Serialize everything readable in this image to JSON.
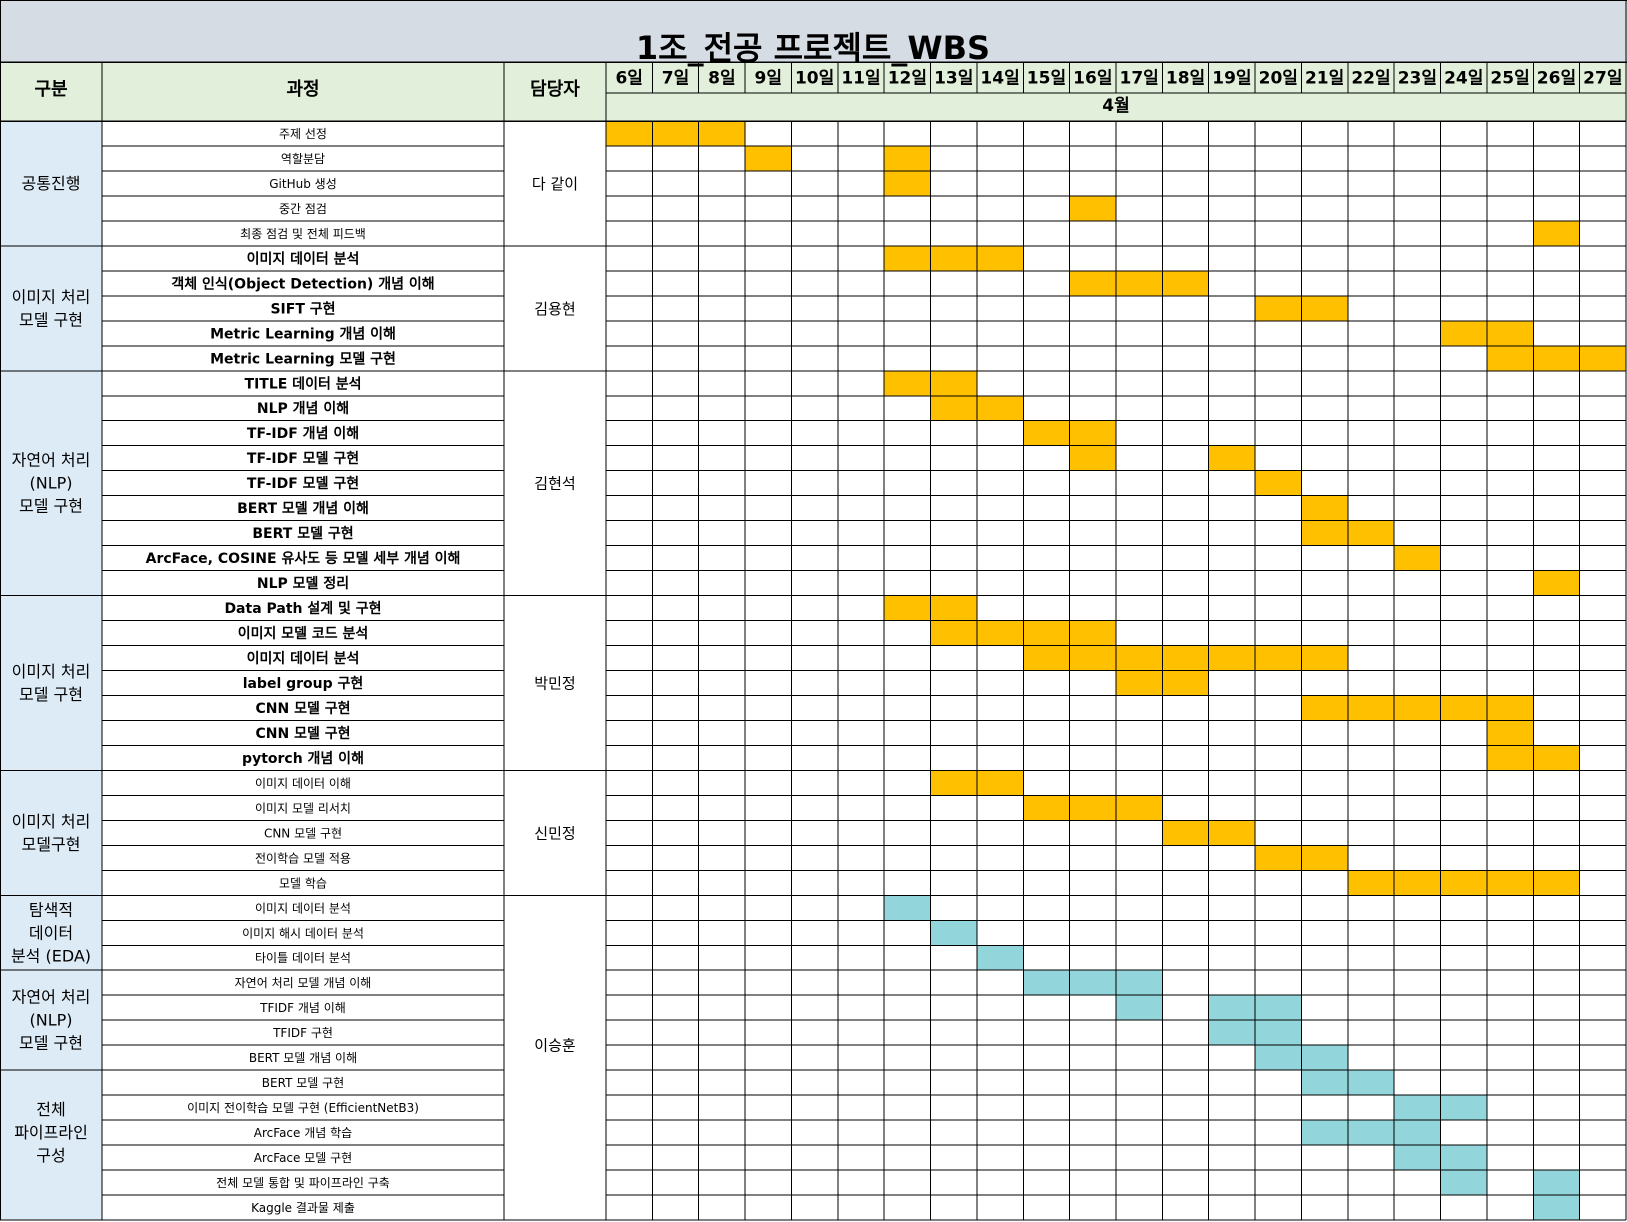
{
  "title": "1조_전공 프로젝트_WBS",
  "headers": {
    "category": "구분",
    "task": "과정",
    "owner": "담당자",
    "month": "4월"
  },
  "days": [
    "6일",
    "7일",
    "8일",
    "9일",
    "10일",
    "11일",
    "12일",
    "13일",
    "14일",
    "15일",
    "16일",
    "17일",
    "18일",
    "19일",
    "20일",
    "21일",
    "22일",
    "23일",
    "24일",
    "25일",
    "26일",
    "27일"
  ],
  "colors": {
    "title_bg": "#d6dce4",
    "header_bg": "#e2efda",
    "category_bg": "#ddebf7",
    "bar_orange": "#ffc000",
    "bar_teal": "#92d6dc",
    "grid": "#000000"
  },
  "categories": [
    {
      "lines": [
        "공통진행"
      ],
      "rows": [
        0,
        4
      ]
    },
    {
      "lines": [
        "이미지 처리",
        "모델 구현"
      ],
      "rows": [
        5,
        9
      ]
    },
    {
      "lines": [
        "자연어 처리",
        "(NLP)",
        "모델 구현"
      ],
      "rows": [
        10,
        18
      ]
    },
    {
      "lines": [
        "이미지 처리",
        "모델 구현"
      ],
      "rows": [
        19,
        25
      ]
    },
    {
      "lines": [
        "이미지 처리",
        "모델구현"
      ],
      "rows": [
        26,
        30
      ]
    },
    {
      "lines": [
        "탐색적",
        "데이터",
        "분석 (EDA)"
      ],
      "rows": [
        31,
        33
      ]
    },
    {
      "lines": [
        "자연어 처리",
        "(NLP)",
        "모델 구현"
      ],
      "rows": [
        34,
        37
      ]
    },
    {
      "lines": [
        "전체",
        "파이프라인",
        "구성"
      ],
      "rows": [
        38,
        42
      ]
    }
  ],
  "owners": [
    {
      "name": "다 같이",
      "rows": [
        0,
        4
      ]
    },
    {
      "name": "김용현",
      "rows": [
        5,
        9
      ]
    },
    {
      "name": "김현석",
      "rows": [
        10,
        18
      ]
    },
    {
      "name": "박민정",
      "rows": [
        19,
        25
      ]
    },
    {
      "name": "신민정",
      "rows": [
        26,
        30
      ]
    },
    {
      "name": "이승훈",
      "rows": [
        31,
        42
      ]
    }
  ],
  "tasks": [
    {
      "name": "주제 선정",
      "bold": false,
      "color": "orange",
      "days": [
        0,
        1,
        2
      ]
    },
    {
      "name": "역할분담",
      "bold": false,
      "color": "orange",
      "days": [
        3,
        6
      ]
    },
    {
      "name": "GitHub 생성",
      "bold": false,
      "color": "orange",
      "days": [
        6
      ]
    },
    {
      "name": "중간 점검",
      "bold": false,
      "color": "orange",
      "days": [
        10
      ]
    },
    {
      "name": "최종 점검 및 전체 피드백",
      "bold": false,
      "color": "orange",
      "days": [
        20
      ]
    },
    {
      "name": "이미지 데이터 분석",
      "bold": true,
      "color": "orange",
      "days": [
        6,
        7,
        8
      ]
    },
    {
      "name": "객체 인식(Object Detection) 개념 이해",
      "bold": true,
      "color": "orange",
      "days": [
        10,
        11,
        12
      ]
    },
    {
      "name": "SIFT 구현",
      "bold": true,
      "color": "orange",
      "days": [
        14,
        15
      ]
    },
    {
      "name": "Metric Learning 개념 이해",
      "bold": true,
      "color": "orange",
      "days": [
        18,
        19
      ]
    },
    {
      "name": "Metric Learning 모델 구현",
      "bold": true,
      "color": "orange",
      "days": [
        19,
        20,
        21
      ]
    },
    {
      "name": "TITLE 데이터 분석",
      "bold": true,
      "color": "orange",
      "days": [
        6,
        7
      ]
    },
    {
      "name": "NLP 개념 이해",
      "bold": true,
      "color": "orange",
      "days": [
        7,
        8
      ]
    },
    {
      "name": "TF-IDF 개념 이해",
      "bold": true,
      "color": "orange",
      "days": [
        9,
        10
      ]
    },
    {
      "name": "TF-IDF 모델 구현",
      "bold": true,
      "color": "orange",
      "days": [
        10,
        13
      ]
    },
    {
      "name": "TF-IDF 모델 구현",
      "bold": true,
      "color": "orange",
      "days": [
        14
      ]
    },
    {
      "name": "BERT 모델 개념 이해",
      "bold": true,
      "color": "orange",
      "days": [
        15
      ]
    },
    {
      "name": "BERT 모델 구현",
      "bold": true,
      "color": "orange",
      "days": [
        15,
        16
      ]
    },
    {
      "name": "ArcFace, COSINE 유사도 등 모델 세부 개념 이해",
      "bold": true,
      "color": "orange",
      "days": [
        17
      ]
    },
    {
      "name": "NLP 모델 정리",
      "bold": true,
      "color": "orange",
      "days": [
        20
      ]
    },
    {
      "name": "Data Path 설계 및 구현",
      "bold": true,
      "color": "orange",
      "days": [
        6,
        7
      ]
    },
    {
      "name": "이미지 모델 코드 분석",
      "bold": true,
      "color": "orange",
      "days": [
        7,
        8,
        9,
        10
      ]
    },
    {
      "name": "이미지 데이터 분석",
      "bold": true,
      "color": "orange",
      "days": [
        9,
        10,
        11,
        12,
        13,
        14,
        15
      ]
    },
    {
      "name": "label group 구현",
      "bold": true,
      "color": "orange",
      "days": [
        11,
        12
      ]
    },
    {
      "name": "CNN 모델 구현",
      "bold": true,
      "color": "orange",
      "days": [
        15,
        16,
        17,
        18,
        19
      ]
    },
    {
      "name": "CNN 모델 구현",
      "bold": true,
      "color": "orange",
      "days": [
        19
      ]
    },
    {
      "name": "pytorch 개념 이해",
      "bold": true,
      "color": "orange",
      "days": [
        19,
        20
      ]
    },
    {
      "name": "이미지 데이터 이해",
      "bold": false,
      "color": "orange",
      "days": [
        7,
        8
      ]
    },
    {
      "name": "이미지 모델 리서치",
      "bold": false,
      "color": "orange",
      "days": [
        9,
        10,
        11
      ]
    },
    {
      "name": "CNN 모델 구현",
      "bold": false,
      "color": "orange",
      "days": [
        12,
        13
      ]
    },
    {
      "name": "전이학습 모델 적용",
      "bold": false,
      "color": "orange",
      "days": [
        14,
        15
      ]
    },
    {
      "name": "모델 학습",
      "bold": false,
      "color": "orange",
      "days": [
        16,
        17,
        18,
        19,
        20
      ]
    },
    {
      "name": "이미지 데이터 분석",
      "bold": false,
      "color": "teal",
      "days": [
        6
      ]
    },
    {
      "name": "이미지 해시 데이터 분석",
      "bold": false,
      "color": "teal",
      "days": [
        7
      ]
    },
    {
      "name": "타이틀 데이터 분석",
      "bold": false,
      "color": "teal",
      "days": [
        8
      ]
    },
    {
      "name": "자연어 처리 모델 개념 이해",
      "bold": false,
      "color": "teal",
      "days": [
        9,
        10,
        11
      ]
    },
    {
      "name": "TFIDF 개념 이해",
      "bold": false,
      "color": "teal",
      "days": [
        11,
        13,
        14
      ]
    },
    {
      "name": "TFIDF 구현",
      "bold": false,
      "color": "teal",
      "days": [
        13,
        14
      ]
    },
    {
      "name": "BERT 모델 개념 이해",
      "bold": false,
      "color": "teal",
      "days": [
        14,
        15
      ]
    },
    {
      "name": "BERT 모델 구현",
      "bold": false,
      "color": "teal",
      "days": [
        15,
        16
      ]
    },
    {
      "name": "이미지 전이학습 모델 구현 (EfficientNetB3)",
      "bold": false,
      "color": "teal",
      "days": [
        17,
        18
      ]
    },
    {
      "name": "ArcFace 개념 학습",
      "bold": false,
      "color": "teal",
      "days": [
        15,
        16,
        17
      ]
    },
    {
      "name": "ArcFace 모델 구현",
      "bold": false,
      "color": "teal",
      "days": [
        17,
        18
      ]
    },
    {
      "name": "전체 모델 통합 및 파이프라인 구축",
      "bold": false,
      "color": "teal",
      "days": [
        18,
        20
      ]
    },
    {
      "name": "Kaggle 결과물 제출",
      "bold": false,
      "color": "teal",
      "days": [
        20
      ]
    }
  ]
}
